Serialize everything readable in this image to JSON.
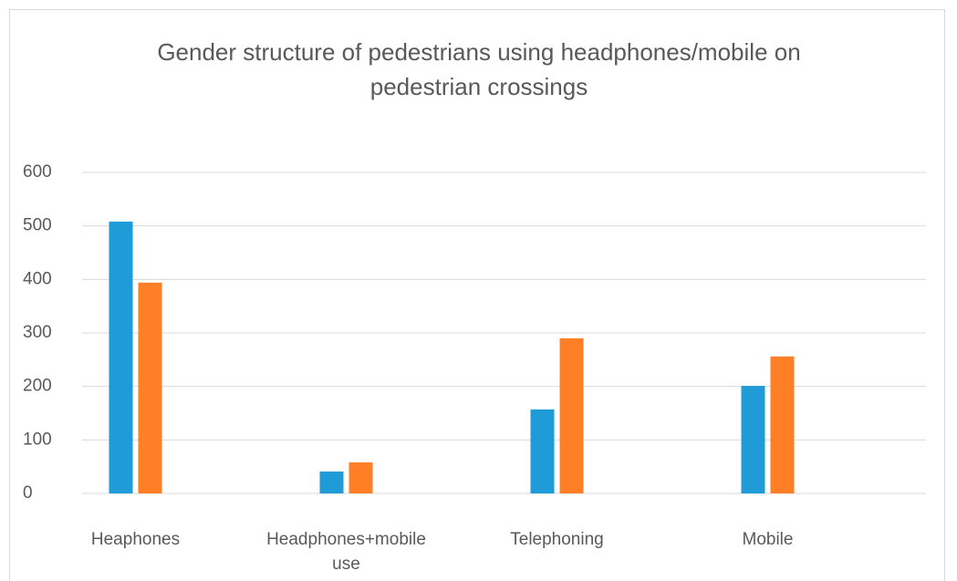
{
  "chart_data": {
    "type": "bar",
    "title": "Gender structure of pedestrians using headphones/mobile on pedestrian crossings",
    "categories": [
      "Heaphones",
      "Headphones+mobile use",
      "Telephoning",
      "Mobile"
    ],
    "series": [
      {
        "color": "#1f9bd7",
        "values": [
          508,
          41,
          157,
          201
        ]
      },
      {
        "color": "#ff7f27",
        "values": [
          394,
          58,
          290,
          256
        ]
      }
    ],
    "ylim": [
      0,
      600
    ],
    "yticks": [
      0,
      100,
      200,
      300,
      400,
      500,
      600
    ],
    "grid": true
  }
}
